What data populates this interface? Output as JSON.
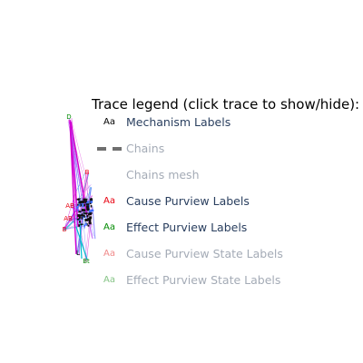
{
  "legend": {
    "title": "Trace legend (click trace to show/hide):",
    "items": [
      {
        "label": "Mechanism Labels",
        "symbol": "Aa",
        "symbol_color": "#000000",
        "label_color": "#2a3f5f",
        "visible": true,
        "icon": "text-symbol-icon"
      },
      {
        "label": "Chains",
        "symbol": "",
        "symbol_color": "#6f6f6f",
        "label_color": "#a4abb6",
        "visible": false,
        "icon": "dashed-line-icon"
      },
      {
        "label": "Chains mesh",
        "symbol": "",
        "symbol_color": "",
        "label_color": "#a4abb6",
        "visible": false,
        "icon": "no-symbol-icon"
      },
      {
        "label": "Cause Purview Labels",
        "symbol": "Aa",
        "symbol_color": "#e8000f",
        "label_color": "#2a3f5f",
        "visible": true,
        "icon": "text-symbol-icon"
      },
      {
        "label": "Effect Purview Labels",
        "symbol": "Aa",
        "symbol_color": "#008a00",
        "label_color": "#2a3f5f",
        "visible": true,
        "icon": "text-symbol-icon"
      },
      {
        "label": "Cause Purview State Labels",
        "symbol": "Aa",
        "symbol_color": "#f08a8a",
        "label_color": "#a4abb6",
        "visible": false,
        "icon": "text-symbol-icon"
      },
      {
        "label": "Effect Purview State Labels",
        "symbol": "Aa",
        "symbol_color": "#86c486",
        "label_color": "#a4abb6",
        "visible": false,
        "icon": "text-symbol-icon"
      }
    ]
  },
  "plot": {
    "node_labels": [
      {
        "text": "D",
        "color": "#008a00"
      },
      {
        "text": "B",
        "color": "#e8000f"
      },
      {
        "text": "AB",
        "color": "#e8000f"
      },
      {
        "text": "AB",
        "color": "#e8000f"
      },
      {
        "text": "B",
        "color": "#e8000f"
      },
      {
        "text": "Bt",
        "color": "#008a00"
      },
      {
        "text": "L",
        "color": "#000000"
      }
    ]
  }
}
